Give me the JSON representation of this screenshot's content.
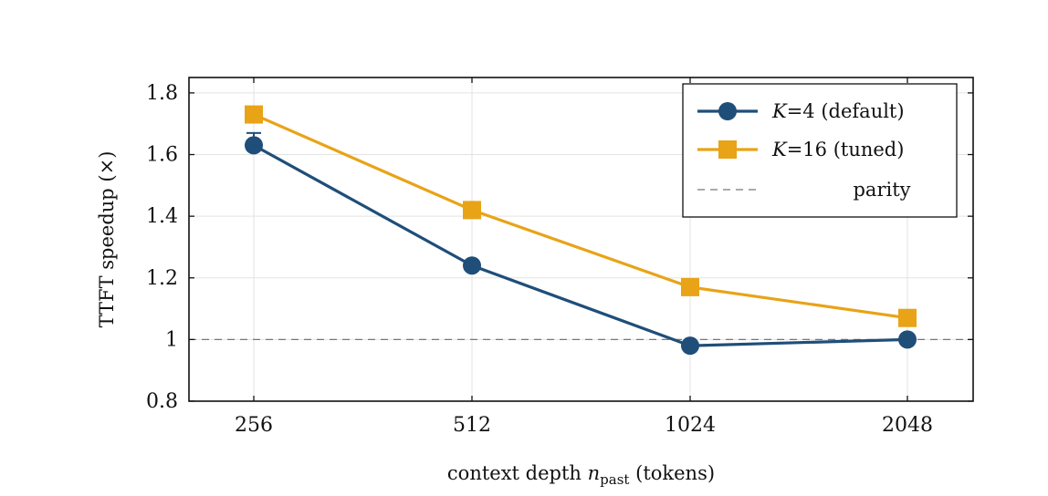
{
  "chart_data": {
    "type": "line",
    "categories": [
      "256",
      "512",
      "1024",
      "2048"
    ],
    "x_tick_labels": [
      "256",
      "512",
      "1024",
      "2048"
    ],
    "y_tick_labels": [
      "0.8",
      "1",
      "1.2",
      "1.4",
      "1.6",
      "1.8"
    ],
    "y_ticks": [
      0.8,
      1.0,
      1.2,
      1.4,
      1.6,
      1.8
    ],
    "ylim": [
      0.8,
      1.85
    ],
    "xlabel": {
      "prefix": "context depth ",
      "var": "n",
      "sub": "past",
      "suffix": " (tokens)"
    },
    "ylabel": "TTFT speedup (×)",
    "grid": true,
    "legend_position": "top-right",
    "series": [
      {
        "name": "K=4 (default)",
        "legend": {
          "var": "K",
          "rest": "=4 (default)"
        },
        "values": [
          1.63,
          1.24,
          0.98,
          1.0
        ],
        "error_upper": [
          1.67,
          null,
          null,
          null
        ],
        "marker": "circle",
        "color": "#1f4e79"
      },
      {
        "name": "K=16 (tuned)",
        "legend": {
          "var": "K",
          "rest": "=16 (tuned)"
        },
        "values": [
          1.73,
          1.42,
          1.17,
          1.07
        ],
        "marker": "square",
        "color": "#e8a317"
      }
    ],
    "reference_line": {
      "name": "parity",
      "value": 1.0,
      "style": "dashed",
      "color": "#777777"
    }
  }
}
